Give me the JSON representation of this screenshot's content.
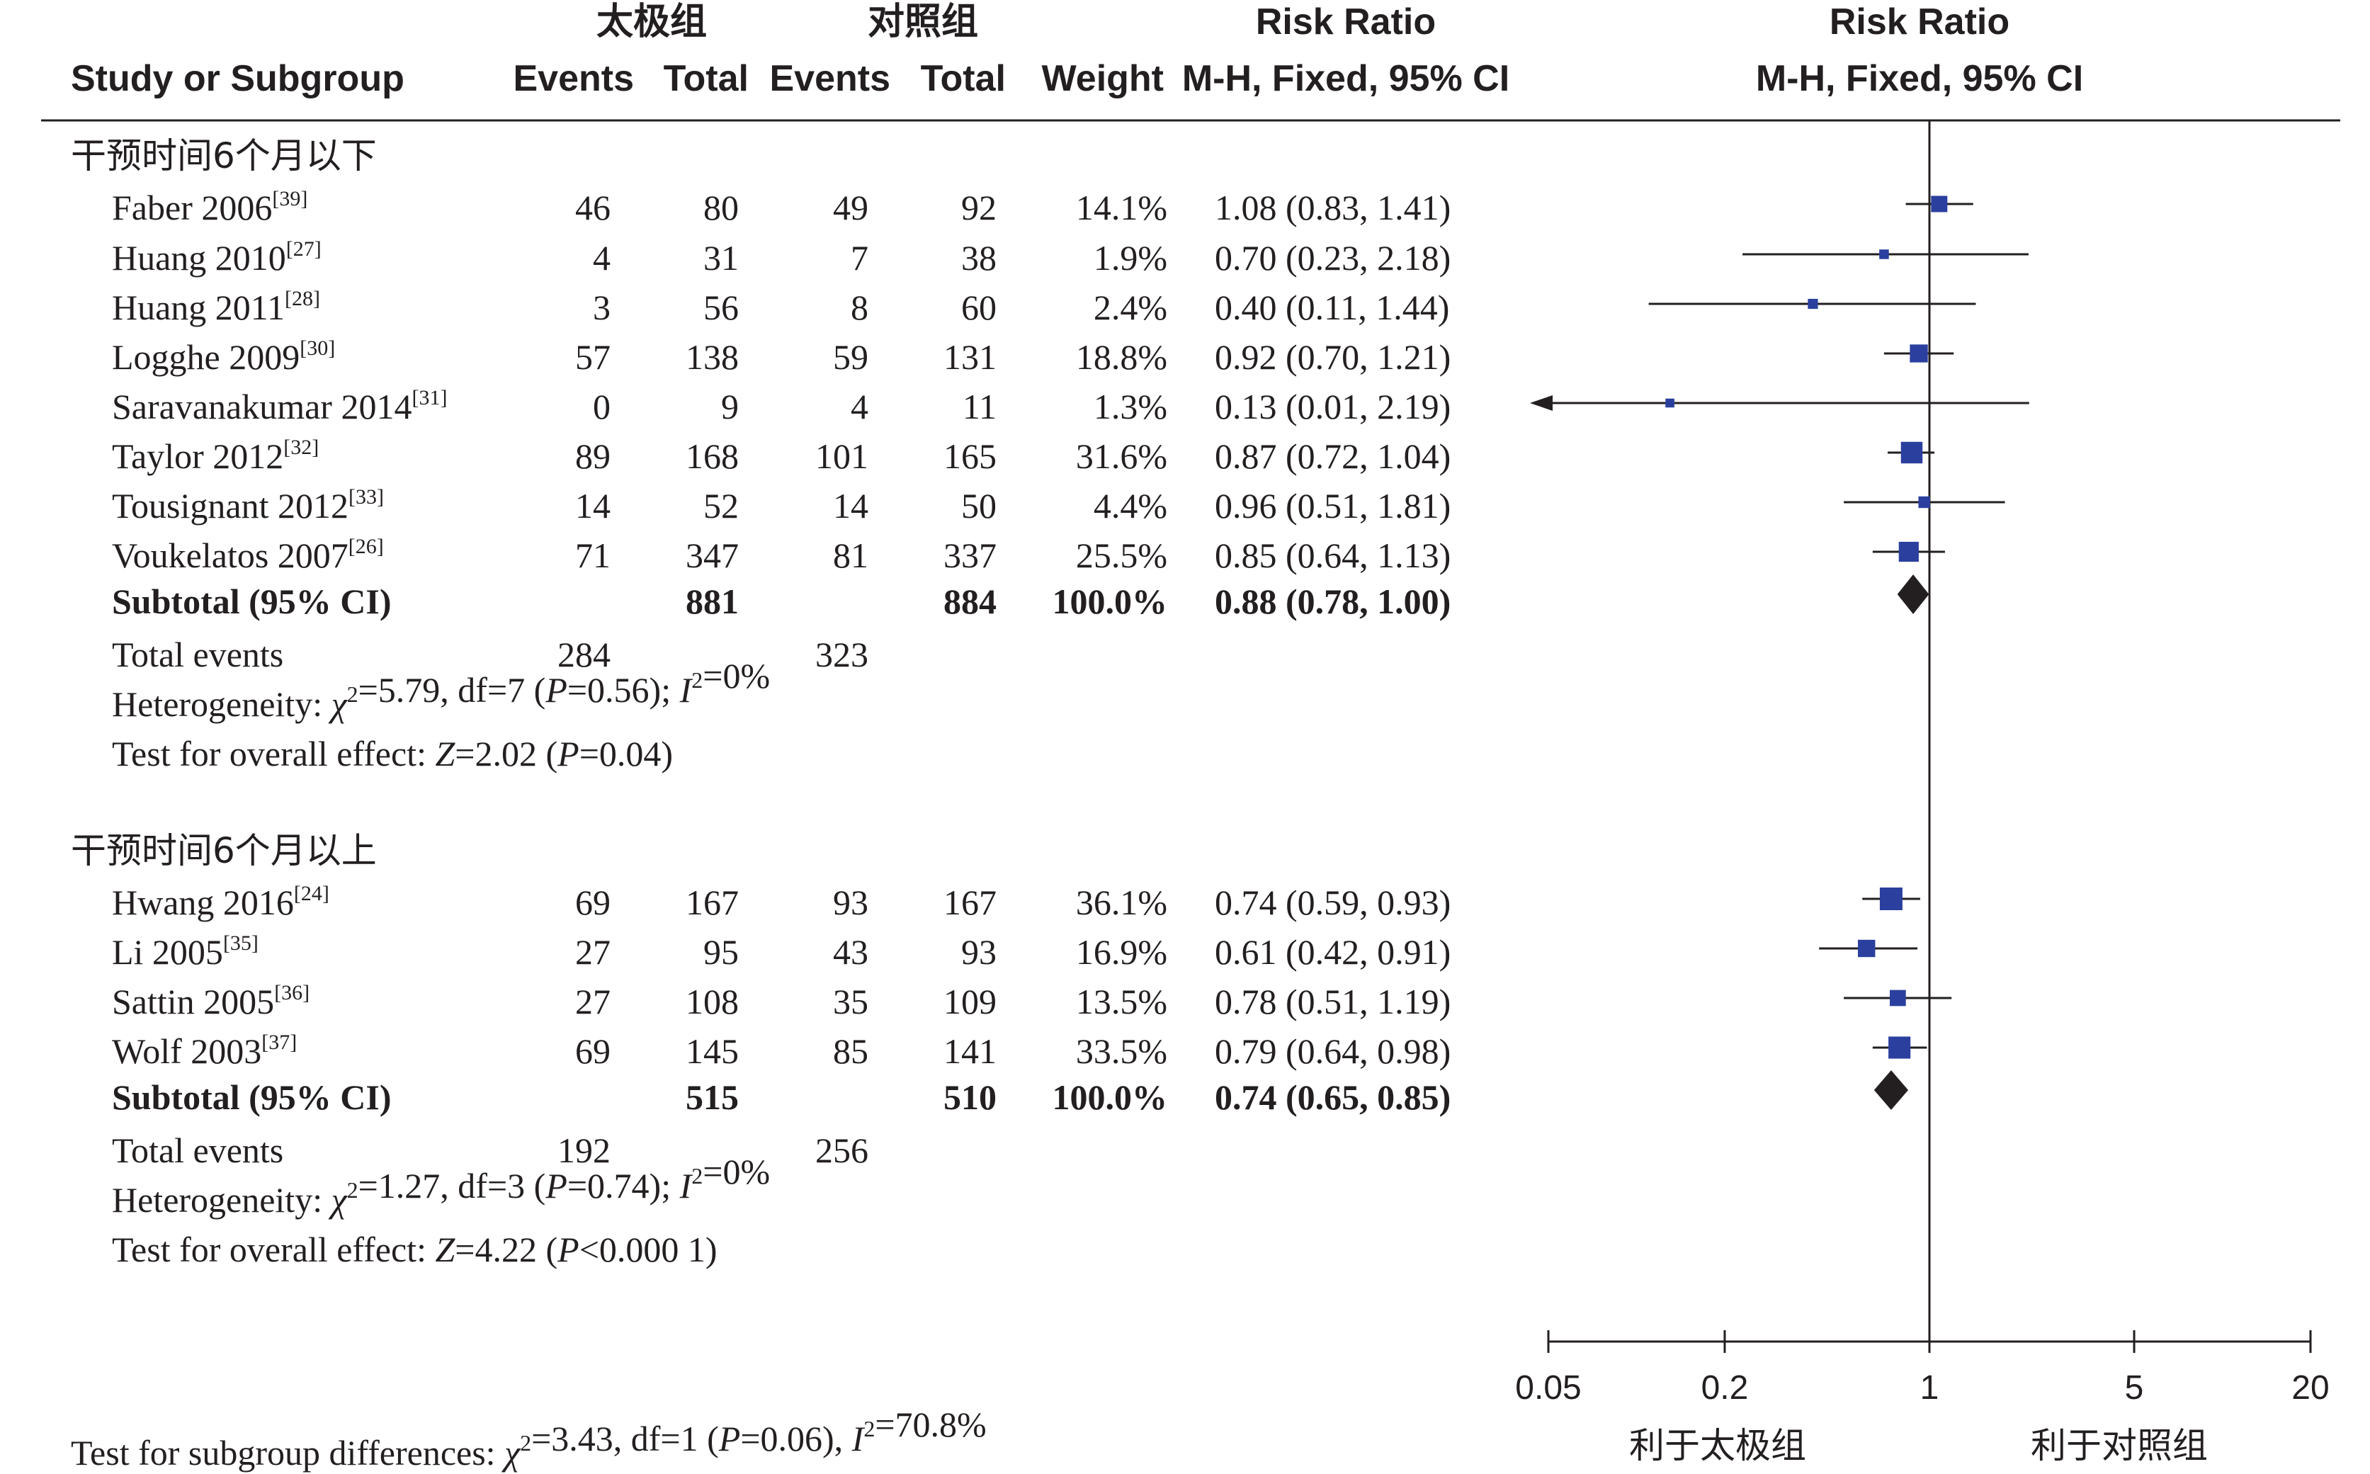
{
  "headers": {
    "group1": "太极组",
    "group2": "对照组",
    "risk_ratio": "Risk Ratio",
    "study": "Study or Subgroup",
    "events": "Events",
    "total": "Total",
    "weight": "Weight",
    "method": "M-H, Fixed, 95% CI",
    "plot_risk_ratio": "Risk Ratio",
    "plot_method": "M-H, Fixed, 95% CI"
  },
  "favours": {
    "left": "利于太极组",
    "right": "利于对照组"
  },
  "subgroup_test": "Test for subgroup differences: χ²=3.43, df=1 (P=0.06), I²=70.8%",
  "chart_data": {
    "type": "forest",
    "x_axis": {
      "scale": "log",
      "ticks": [
        0.05,
        0.2,
        1,
        5,
        20
      ],
      "tick_labels": [
        "0.05",
        "0.2",
        "1",
        "5",
        "20"
      ],
      "range": [
        0.05,
        20
      ],
      "null_line": 1
    },
    "marker_color": "#2b3f9e",
    "diamond_color": "#231f20",
    "subgroups": [
      {
        "label": "干预时间6个月以下",
        "studies": [
          {
            "name": "Faber 2006",
            "ref": "[39]",
            "e1": "46",
            "t1": "80",
            "e2": "49",
            "t2": "92",
            "weight": "14.1%",
            "ci_text": "1.08 (0.83, 1.41)",
            "rr": 1.08,
            "lo": 0.83,
            "hi": 1.41,
            "w": 14.1
          },
          {
            "name": "Huang  2010",
            "ref": "[27]",
            "e1": "4",
            "t1": "31",
            "e2": "7",
            "t2": "38",
            "weight": "1.9%",
            "ci_text": "0.70 (0.23, 2.18)",
            "rr": 0.7,
            "lo": 0.23,
            "hi": 2.18,
            "w": 1.9
          },
          {
            "name": "Huang 2011",
            "ref": "[28]",
            "e1": "3",
            "t1": "56",
            "e2": "8",
            "t2": "60",
            "weight": "2.4%",
            "ci_text": "0.40 (0.11, 1.44)",
            "rr": 0.4,
            "lo": 0.11,
            "hi": 1.44,
            "w": 2.4
          },
          {
            "name": "Logghe 2009",
            "ref": "[30]",
            "e1": "57",
            "t1": "138",
            "e2": "59",
            "t2": "131",
            "weight": "18.8%",
            "ci_text": "0.92 (0.70, 1.21)",
            "rr": 0.92,
            "lo": 0.7,
            "hi": 1.21,
            "w": 18.8
          },
          {
            "name": "Saravanakumar 2014",
            "ref": "[31]",
            "e1": "0",
            "t1": "9",
            "e2": "4",
            "t2": "11",
            "weight": "1.3%",
            "ci_text": "0.13 (0.01, 2.19)",
            "rr": 0.13,
            "lo": 0.01,
            "hi": 2.19,
            "w": 1.3
          },
          {
            "name": "Taylor 2012",
            "ref": "[32]",
            "e1": "89",
            "t1": "168",
            "e2": "101",
            "t2": "165",
            "weight": "31.6%",
            "ci_text": "0.87 (0.72, 1.04)",
            "rr": 0.87,
            "lo": 0.72,
            "hi": 1.04,
            "w": 31.6
          },
          {
            "name": "Tousignant 2012",
            "ref": "[33]",
            "e1": "14",
            "t1": "52",
            "e2": "14",
            "t2": "50",
            "weight": "4.4%",
            "ci_text": "0.96 (0.51, 1.81)",
            "rr": 0.96,
            "lo": 0.51,
            "hi": 1.81,
            "w": 4.4
          },
          {
            "name": "Voukelatos 2007",
            "ref": "[26]",
            "e1": "71",
            "t1": "347",
            "e2": "81",
            "t2": "337",
            "weight": "25.5%",
            "ci_text": "0.85 (0.64, 1.13)",
            "rr": 0.85,
            "lo": 0.64,
            "hi": 1.13,
            "w": 25.5
          }
        ],
        "subtotal": {
          "label": "Subtotal (95% CI)",
          "t1": "881",
          "t2": "884",
          "weight": "100.0%",
          "ci_text": "0.88 (0.78, 1.00)",
          "rr": 0.88,
          "lo": 0.78,
          "hi": 1.0
        },
        "total_events": {
          "label": "Total events",
          "e1": "284",
          "e2": "323"
        },
        "heterogeneity": "Heterogeneity: χ²=5.79, df=7 (P=0.56); I²=0%",
        "overall": "Test for overall effect: Z=2.02 (P=0.04)"
      },
      {
        "label": "干预时间6个月以上",
        "studies": [
          {
            "name": "Hwang 2016",
            "ref": "[24]",
            "e1": "69",
            "t1": "167",
            "e2": "93",
            "t2": "167",
            "weight": "36.1%",
            "ci_text": "0.74 (0.59, 0.93)",
            "rr": 0.74,
            "lo": 0.59,
            "hi": 0.93,
            "w": 36.1
          },
          {
            "name": "Li 2005",
            "ref": "[35]",
            "e1": "27",
            "t1": "95",
            "e2": "43",
            "t2": "93",
            "weight": "16.9%",
            "ci_text": "0.61 (0.42, 0.91)",
            "rr": 0.61,
            "lo": 0.42,
            "hi": 0.91,
            "w": 16.9
          },
          {
            "name": "Sattin 2005",
            "ref": "[36]",
            "e1": "27",
            "t1": "108",
            "e2": "35",
            "t2": "109",
            "weight": "13.5%",
            "ci_text": "0.78 (0.51, 1.19)",
            "rr": 0.78,
            "lo": 0.51,
            "hi": 1.19,
            "w": 13.5
          },
          {
            "name": "Wolf 2003",
            "ref": "[37]",
            "e1": "69",
            "t1": "145",
            "e2": "85",
            "t2": "141",
            "weight": "33.5%",
            "ci_text": "0.79 (0.64, 0.98)",
            "rr": 0.79,
            "lo": 0.64,
            "hi": 0.98,
            "w": 33.5
          }
        ],
        "subtotal": {
          "label": "Subtotal (95% CI)",
          "t1": "515",
          "t2": "510",
          "weight": "100.0%",
          "ci_text": "0.74 (0.65, 0.85)",
          "rr": 0.74,
          "lo": 0.65,
          "hi": 0.85
        },
        "total_events": {
          "label": "Total events",
          "e1": "192",
          "e2": "256"
        },
        "heterogeneity": "Heterogeneity: χ²=1.27, df=3 (P=0.74); I²=0%",
        "overall": "Test for overall effect: Z=4.22 (P<0.000 1)"
      }
    ]
  }
}
